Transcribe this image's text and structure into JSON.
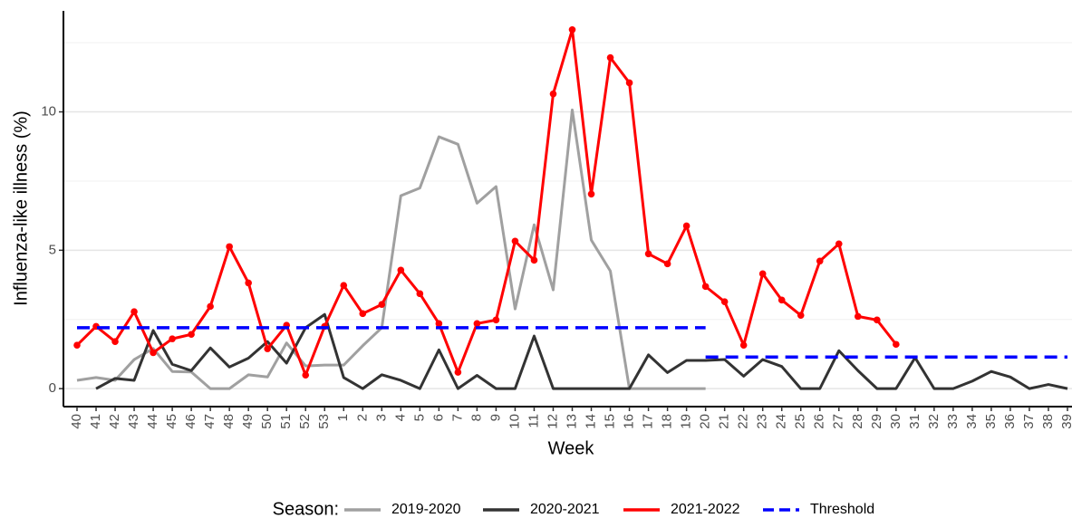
{
  "chart_data": {
    "type": "line",
    "x_label": "Week",
    "y_label": "Influenza-like illness (%)",
    "legend_title": "Season:",
    "legend_position": "bottom",
    "categories": [
      "40",
      "41",
      "42",
      "43",
      "44",
      "45",
      "46",
      "47",
      "48",
      "49",
      "50",
      "51",
      "52",
      "53",
      "1",
      "2",
      "3",
      "4",
      "5",
      "6",
      "7",
      "8",
      "9",
      "10",
      "11",
      "12",
      "13",
      "14",
      "15",
      "16",
      "17",
      "18",
      "19",
      "20",
      "21",
      "22",
      "23",
      "24",
      "25",
      "26",
      "27",
      "28",
      "29",
      "30",
      "31",
      "32",
      "33",
      "34",
      "35",
      "36",
      "37",
      "38",
      "39"
    ],
    "ylim": [
      -0.65,
      13.65
    ],
    "yticks": [
      0,
      5,
      10
    ],
    "minor_yticks": [
      2.5,
      7.5,
      12.5
    ],
    "grid": true,
    "series": [
      {
        "name": "2019-2020",
        "color": "#a0a0a0",
        "points": false,
        "values": [
          0.3,
          0.4,
          0.3,
          1.05,
          1.45,
          0.62,
          0.6,
          0,
          0,
          0.5,
          0.42,
          1.65,
          0.82,
          0.85,
          0.85,
          1.55,
          2.2,
          6.97,
          7.25,
          9.1,
          8.83,
          6.7,
          7.3,
          2.88,
          5.92,
          3.57,
          10.07,
          5.37,
          4.25,
          0,
          0,
          0,
          0,
          0,
          null,
          null,
          null,
          null,
          null,
          null,
          null,
          null,
          null,
          null,
          null,
          null,
          null,
          null,
          null,
          null,
          null,
          null,
          null
        ]
      },
      {
        "name": "2020-2021",
        "color": "#333333",
        "points": false,
        "values": [
          null,
          0,
          0.37,
          0.3,
          2.1,
          0.88,
          0.65,
          1.47,
          0.78,
          1.1,
          1.7,
          0.92,
          2.2,
          2.68,
          0.4,
          0,
          0.5,
          0.3,
          0,
          1.4,
          0,
          0.48,
          0,
          0,
          1.9,
          0,
          0,
          0,
          0,
          0,
          1.22,
          0.58,
          1.02,
          1.02,
          1.05,
          0.45,
          1.05,
          0.8,
          0,
          0,
          1.37,
          0.65,
          0,
          0,
          1.12,
          0,
          0,
          0.27,
          0.62,
          0.42,
          0,
          0.15,
          0
        ]
      },
      {
        "name": "2021-2022",
        "color": "#ff0000",
        "points": true,
        "values": [
          1.57,
          2.25,
          1.7,
          2.78,
          1.3,
          1.8,
          1.96,
          2.97,
          5.13,
          3.82,
          1.44,
          2.29,
          0.49,
          2.25,
          3.73,
          2.71,
          3.04,
          4.28,
          3.43,
          2.35,
          0.59,
          2.35,
          2.48,
          5.33,
          4.64,
          10.65,
          12.97,
          7.03,
          11.96,
          11.05,
          4.87,
          4.51,
          5.88,
          3.69,
          3.14,
          1.57,
          4.15,
          3.2,
          2.65,
          4.61,
          5.23,
          2.61,
          2.48,
          1.6,
          null,
          null,
          null,
          null,
          null,
          null,
          null,
          null,
          null
        ]
      }
    ],
    "threshold": {
      "name": "Threshold",
      "color": "#0000ff",
      "segments": [
        {
          "value": 2.2,
          "from": "40",
          "to": "20"
        },
        {
          "value": 1.14,
          "from": "20",
          "to": "39"
        }
      ]
    }
  }
}
